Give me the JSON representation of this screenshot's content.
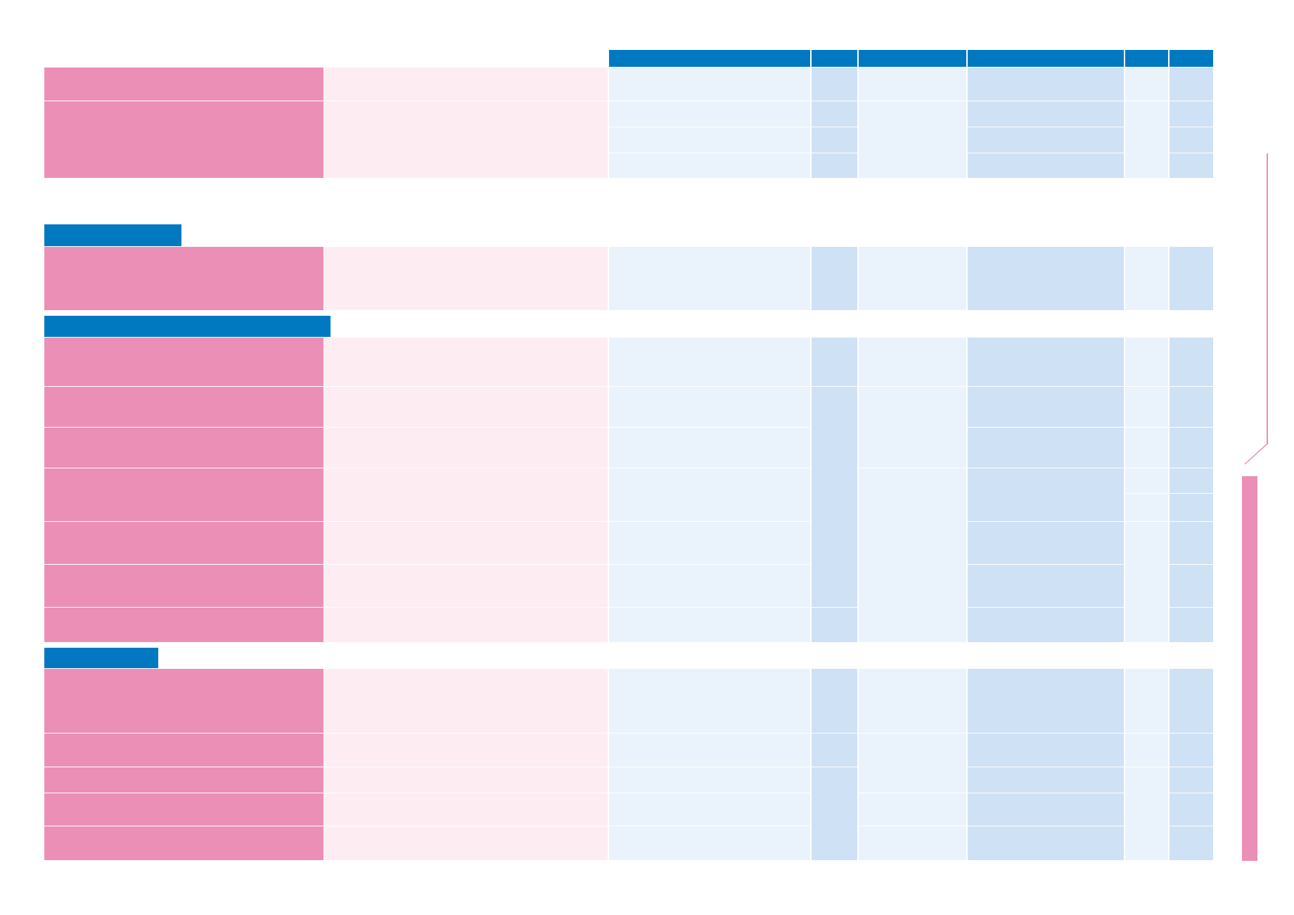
{
  "colors": {
    "header_blue": "#0079c1",
    "row_pink": "#ec8fb6",
    "row_light_pink": "#fdedf2",
    "cell_light_blue": "#eaf3fc",
    "cell_mid_blue": "#cfe1f4",
    "background": "#ffffff"
  },
  "table": {
    "column_headers": [
      "",
      "",
      "",
      "",
      "",
      ""
    ],
    "section_headers": [
      "",
      "",
      ""
    ],
    "rows": [],
    "visible_text": "none"
  }
}
